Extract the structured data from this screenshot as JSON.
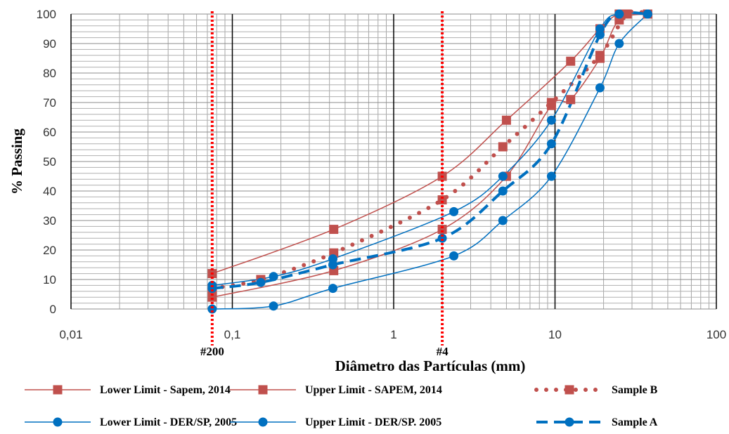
{
  "chart_data": {
    "type": "line",
    "xlabel": "Diâmetro das Partículas (mm)",
    "ylabel": "% Passing",
    "x_scale": "log",
    "xlim": [
      0.01,
      100
    ],
    "ylim": [
      0,
      100
    ],
    "x_tick_labels": [
      "0,01",
      "0,1",
      "1",
      "10",
      "100"
    ],
    "y_ticks": [
      0,
      10,
      20,
      30,
      40,
      50,
      60,
      70,
      80,
      90,
      100
    ],
    "grid": true,
    "legend_position": "bottom",
    "sieve_markers": [
      {
        "label": "#200",
        "x": 0.075,
        "color": "#ff0000"
      },
      {
        "label": "#4",
        "x": 2.0,
        "color": "#ff0000"
      }
    ],
    "series": [
      {
        "name": "Lower Limit - Sapem, 2014",
        "color": "#c0504d",
        "marker": "square",
        "style": "solid",
        "x": [
          0.075,
          0.425,
          2.0,
          5.0,
          9.5,
          12.5,
          19.0,
          25.0,
          37.5
        ],
        "y": [
          4,
          13,
          27,
          45,
          69,
          71,
          85,
          98,
          100
        ]
      },
      {
        "name": "Upper Limit - SAPEM, 2014",
        "color": "#c0504d",
        "marker": "square",
        "style": "solid",
        "x": [
          0.075,
          0.425,
          2.0,
          5.0,
          12.5,
          19.0,
          25.0,
          37.5
        ],
        "y": [
          12,
          27,
          45,
          64,
          84,
          95,
          100,
          100
        ]
      },
      {
        "name": "Sample B",
        "color": "#c0504d",
        "marker": "square",
        "style": "dotted",
        "x": [
          0.075,
          0.15,
          0.425,
          2.0,
          4.75,
          9.5,
          19.0,
          28.0,
          37.5
        ],
        "y": [
          7,
          10,
          19,
          37,
          55,
          70,
          86,
          100,
          100
        ]
      },
      {
        "name": "Lower Limit - DER/SP, 2005",
        "color": "#0070c0",
        "marker": "circle",
        "style": "solid",
        "x": [
          0.075,
          0.18,
          0.42,
          2.36,
          4.75,
          9.5,
          19.0,
          25.0,
          37.5
        ],
        "y": [
          0,
          1,
          7,
          18,
          30,
          45,
          75,
          90,
          100
        ]
      },
      {
        "name": "Upper Limit - DER/SP. 2005",
        "color": "#0070c0",
        "marker": "circle",
        "style": "solid",
        "x": [
          0.075,
          0.18,
          0.42,
          2.36,
          4.75,
          9.5,
          19.0,
          25.0,
          37.5
        ],
        "y": [
          8,
          11,
          17,
          33,
          45,
          64,
          95,
          100,
          100
        ]
      },
      {
        "name": "Sample A",
        "color": "#0070c0",
        "marker": "circle",
        "style": "dashed",
        "x": [
          0.075,
          0.15,
          0.42,
          2.0,
          4.75,
          9.5,
          19.0,
          25.0,
          37.5
        ],
        "y": [
          7,
          9,
          15,
          24,
          40,
          56,
          93,
          100,
          100
        ]
      }
    ]
  }
}
